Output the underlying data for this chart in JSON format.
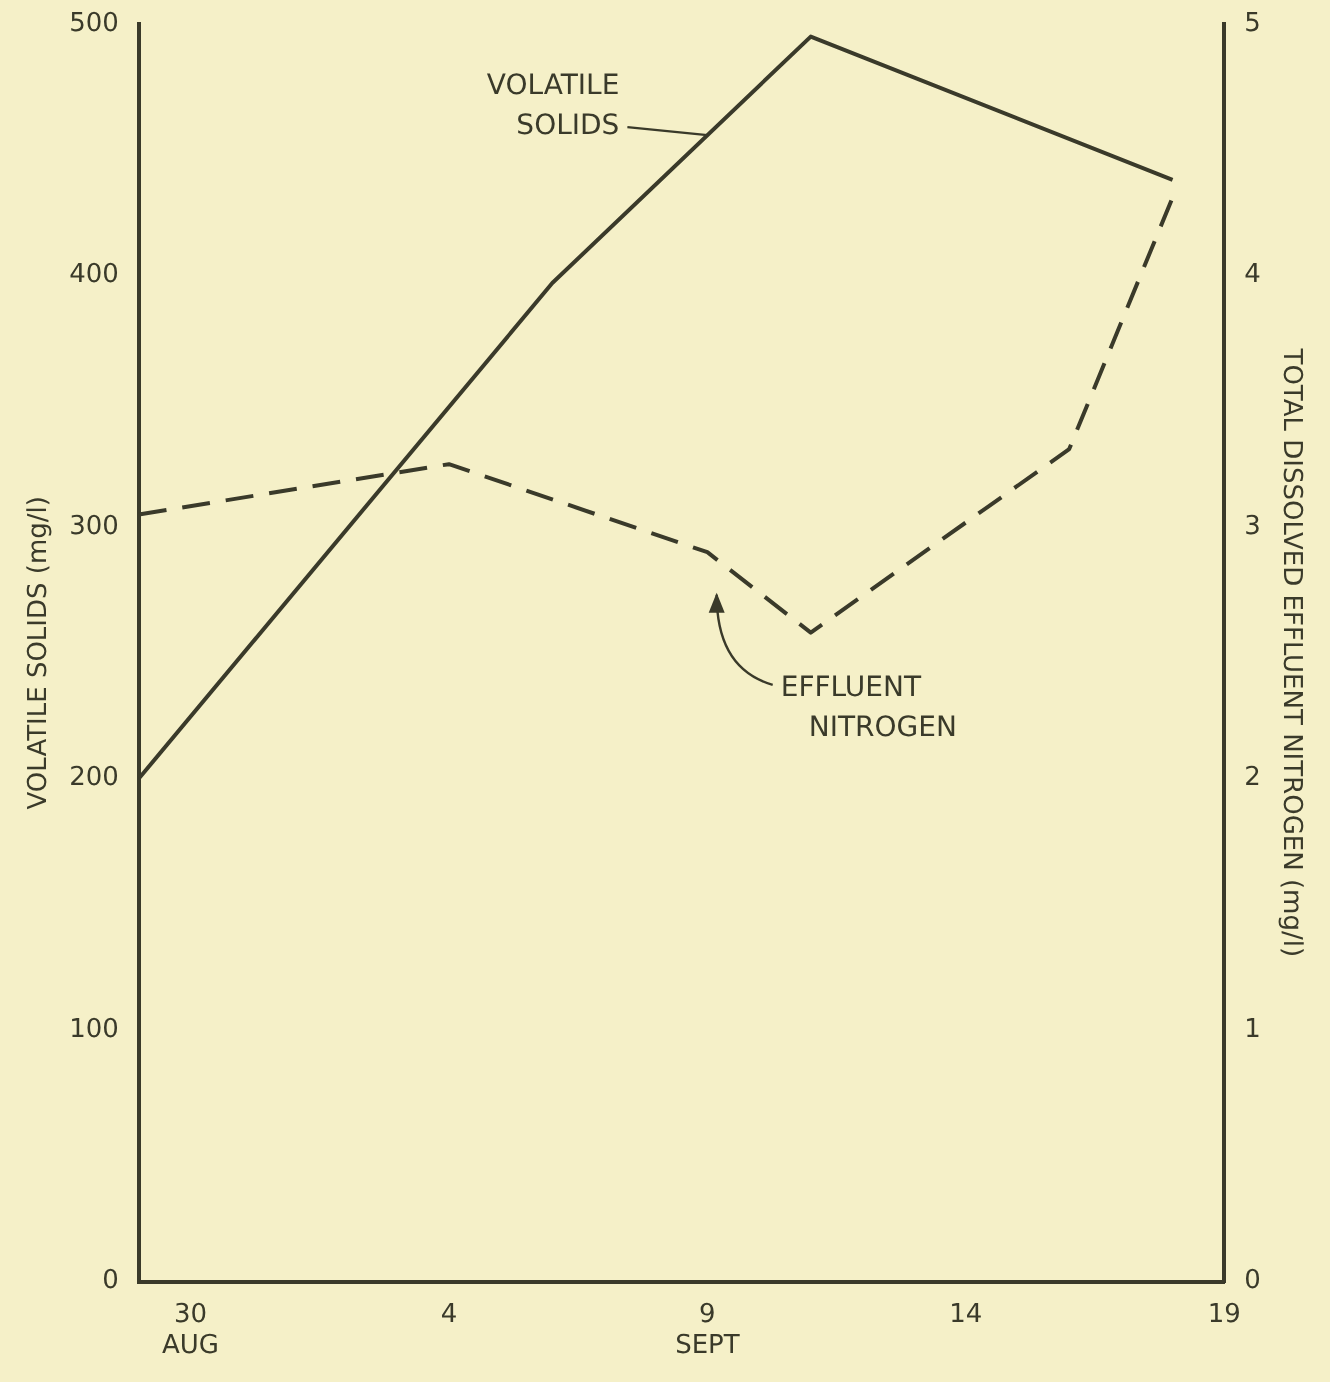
{
  "chart_data": {
    "type": "line",
    "x": [
      "--08-29",
      "--09-06",
      "--09-11",
      "--09-18"
    ],
    "xlim": [
      "--08-29",
      "--09-19"
    ],
    "xticks": [
      {
        "value": "--08-30",
        "label": "30\nAUG"
      },
      {
        "value": "--09-04",
        "label": "4"
      },
      {
        "value": "--09-09",
        "label": "9\nSEPT"
      },
      {
        "value": "--09-14",
        "label": "14"
      },
      {
        "value": "--09-19",
        "label": "19"
      }
    ],
    "ylabel": "VOLATILE SOLIDS (mg/l)",
    "y2label": "TOTAL DISSOLVED EFFLUENT NITROGEN (mg/l)",
    "ylim": [
      0,
      500
    ],
    "yticks": [
      0,
      100,
      200,
      300,
      400,
      500
    ],
    "y2lim": [
      0,
      5
    ],
    "y2ticks": [
      0,
      1,
      2,
      3,
      4,
      5
    ],
    "grid": false,
    "legend": false,
    "marker": "none",
    "series": [
      {
        "name": "VOLATILE SOLIDS",
        "color": "#3a3a2a",
        "line_style": "solid",
        "values": [
          200,
          397,
          495,
          438
        ]
      },
      {
        "name": "EFFLUENT NITROGEN",
        "color": "#3a3a2a",
        "line_style": "dashed",
        "axis": "y2",
        "x": [
          "--08-29",
          "--09-04",
          "--09-09",
          "--09-11",
          "--09-16",
          "--09-18"
        ],
        "values": [
          3.05,
          3.25,
          2.9,
          2.58,
          3.31,
          4.31
        ]
      }
    ]
  }
}
